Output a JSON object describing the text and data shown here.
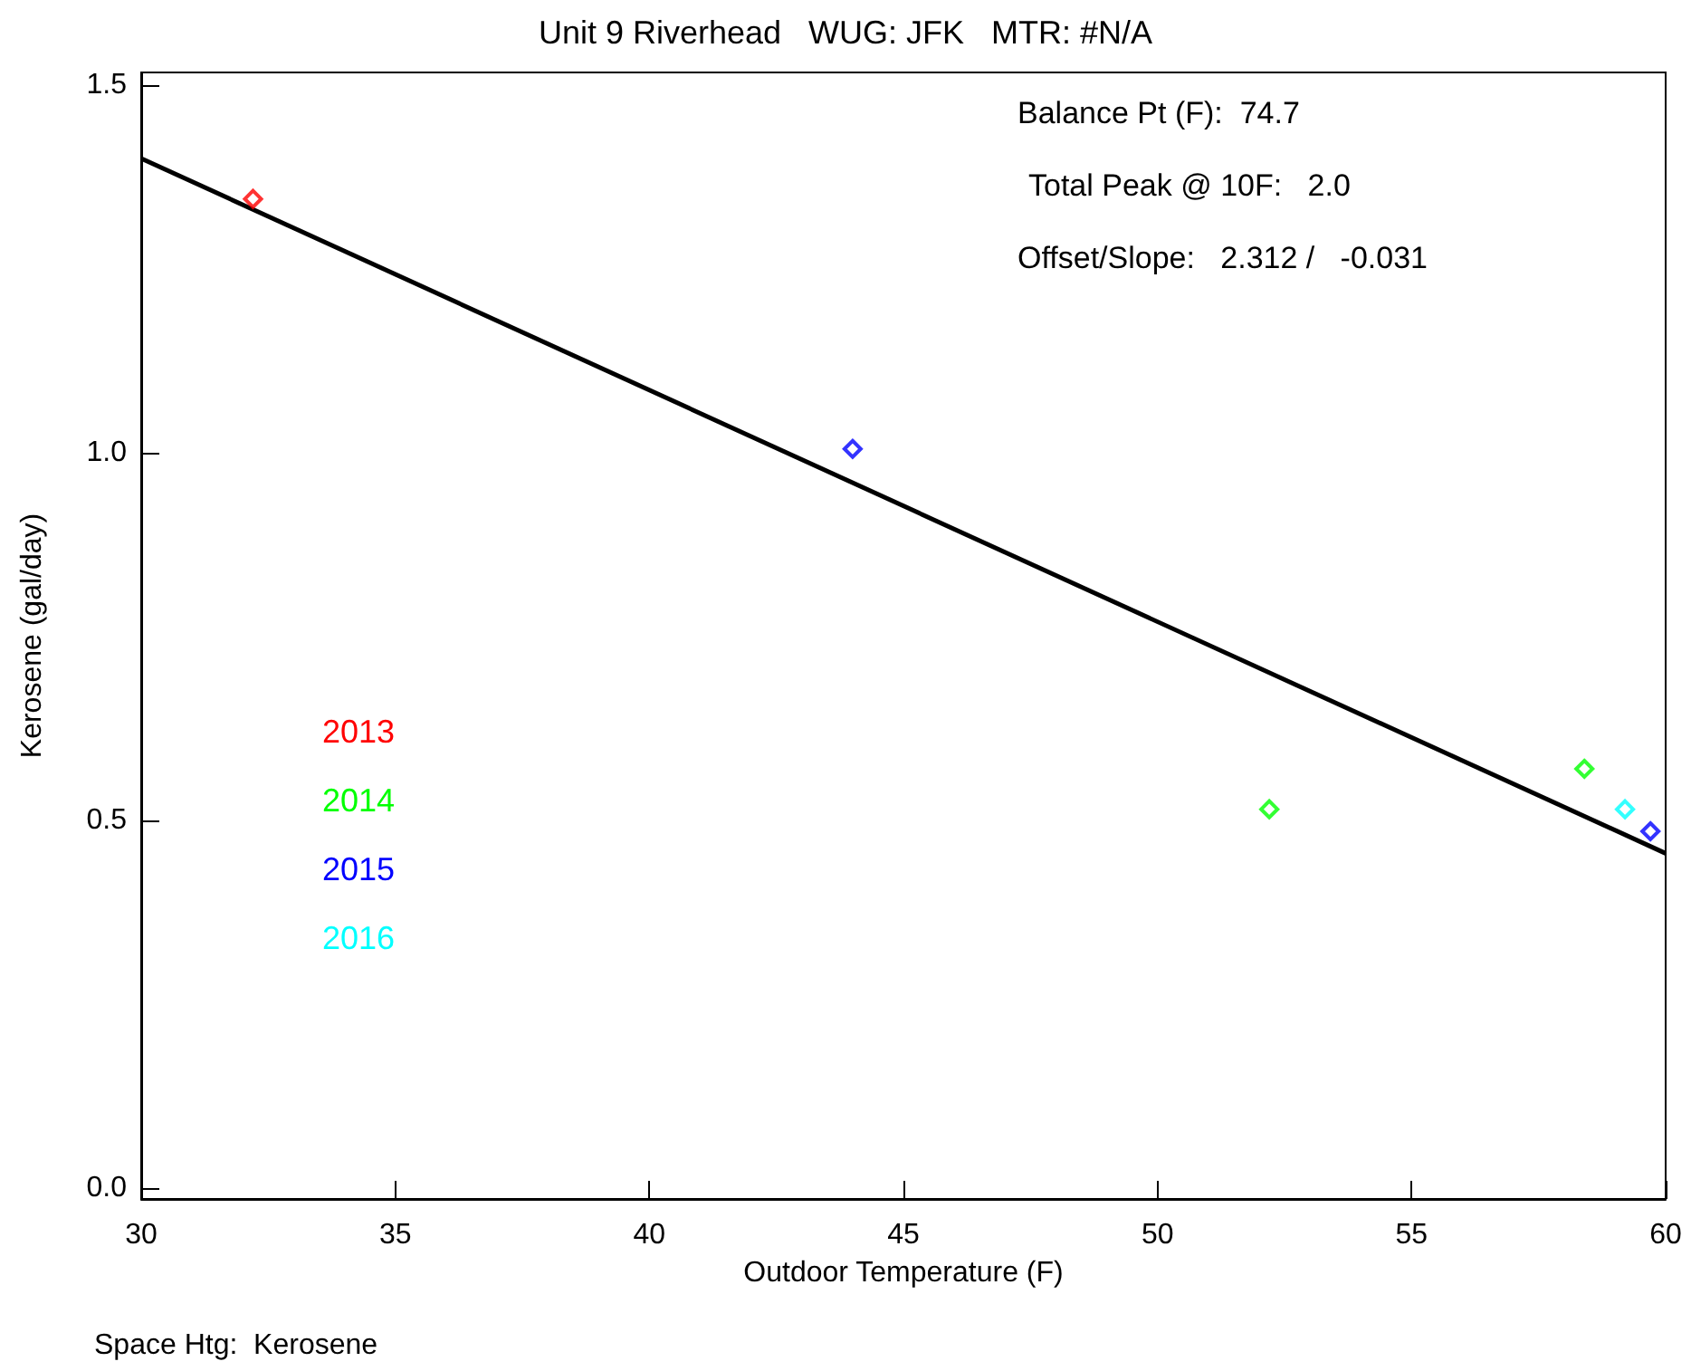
{
  "chart_data": {
    "type": "scatter",
    "title": "Unit 9 Riverhead   WUG: JFK   MTR: #N/A",
    "xlabel": "Outdoor Temperature (F)",
    "ylabel": "Kerosene (gal/day)",
    "xlim": [
      30,
      60
    ],
    "xticks": [
      30,
      35,
      40,
      45,
      50,
      55,
      60
    ],
    "ylim": [
      -0.015,
      1.517
    ],
    "yticks": [
      {
        "value": 0,
        "label": "0.0"
      },
      {
        "value": 0.5,
        "label": "0.5"
      },
      {
        "value": 1,
        "label": "1.0"
      },
      {
        "value": 1.5,
        "label": "1.5"
      }
    ],
    "legend": "left",
    "marker": "diamond",
    "series": [
      {
        "name": "2013",
        "color": "#ff0000",
        "x": [
          32.2
        ],
        "values": [
          1.345
        ]
      },
      {
        "name": "2014",
        "color": "#00ff00",
        "x": [
          52.2,
          58.4
        ],
        "values": [
          0.515,
          0.57
        ]
      },
      {
        "name": "2015",
        "color": "#0000ff",
        "x": [
          44.0,
          59.7
        ],
        "values": [
          1.005,
          0.485
        ]
      },
      {
        "name": "2016",
        "color": "#00ffff",
        "x": [
          59.2
        ],
        "values": [
          0.515
        ]
      },
      {
        "type": "line",
        "color": "#000000",
        "x": [
          30,
          60
        ],
        "values": [
          1.4,
          0.455
        ],
        "line_style": "solid",
        "marker": "none"
      }
    ],
    "annotations": [
      "Balance Pt (F):  74.7",
      "Total Peak @ 10F:   2.0",
      "Offset/Slope:   2.312 /   -0.031",
      "Space Htg:  Kerosene"
    ]
  }
}
